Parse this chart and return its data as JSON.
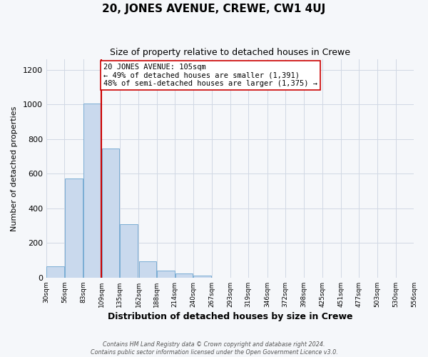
{
  "title": "20, JONES AVENUE, CREWE, CW1 4UJ",
  "subtitle": "Size of property relative to detached houses in Crewe",
  "xlabel": "Distribution of detached houses by size in Crewe",
  "ylabel": "Number of detached properties",
  "bar_left_edges": [
    30,
    56,
    83,
    109,
    135,
    162,
    188,
    214,
    240,
    267,
    293,
    319,
    346,
    372,
    398,
    425,
    451,
    477,
    503,
    530
  ],
  "bar_heights": [
    65,
    570,
    1005,
    745,
    310,
    95,
    40,
    22,
    10,
    0,
    0,
    0,
    0,
    0,
    0,
    0,
    0,
    0,
    0,
    0
  ],
  "bin_width": 26,
  "bar_facecolor": "#c9d9ed",
  "bar_edgecolor": "#7aadd4",
  "grid_color": "#d0d8e4",
  "property_line_x": 109,
  "property_line_color": "#cc0000",
  "annotation_text": "20 JONES AVENUE: 105sqm\n← 49% of detached houses are smaller (1,391)\n48% of semi-detached houses are larger (1,375) →",
  "annotation_box_edgecolor": "#cc0000",
  "annotation_box_facecolor": "#ffffff",
  "xlim_left": 30,
  "xlim_right": 556,
  "ylim_top": 1260,
  "tick_labels": [
    "30sqm",
    "56sqm",
    "83sqm",
    "109sqm",
    "135sqm",
    "162sqm",
    "188sqm",
    "214sqm",
    "240sqm",
    "267sqm",
    "293sqm",
    "319sqm",
    "346sqm",
    "372sqm",
    "398sqm",
    "425sqm",
    "451sqm",
    "477sqm",
    "503sqm",
    "530sqm",
    "556sqm"
  ],
  "tick_positions": [
    30,
    56,
    83,
    109,
    135,
    162,
    188,
    214,
    240,
    267,
    293,
    319,
    346,
    372,
    398,
    425,
    451,
    477,
    503,
    530,
    556
  ],
  "yticks": [
    0,
    200,
    400,
    600,
    800,
    1000,
    1200
  ],
  "footer_line1": "Contains HM Land Registry data © Crown copyright and database right 2024.",
  "footer_line2": "Contains public sector information licensed under the Open Government Licence v3.0.",
  "background_color": "#f5f7fa",
  "title_fontsize": 11,
  "subtitle_fontsize": 9,
  "xlabel_fontsize": 9,
  "ylabel_fontsize": 8,
  "xtick_fontsize": 6.5,
  "ytick_fontsize": 8,
  "footer_fontsize": 5.8
}
